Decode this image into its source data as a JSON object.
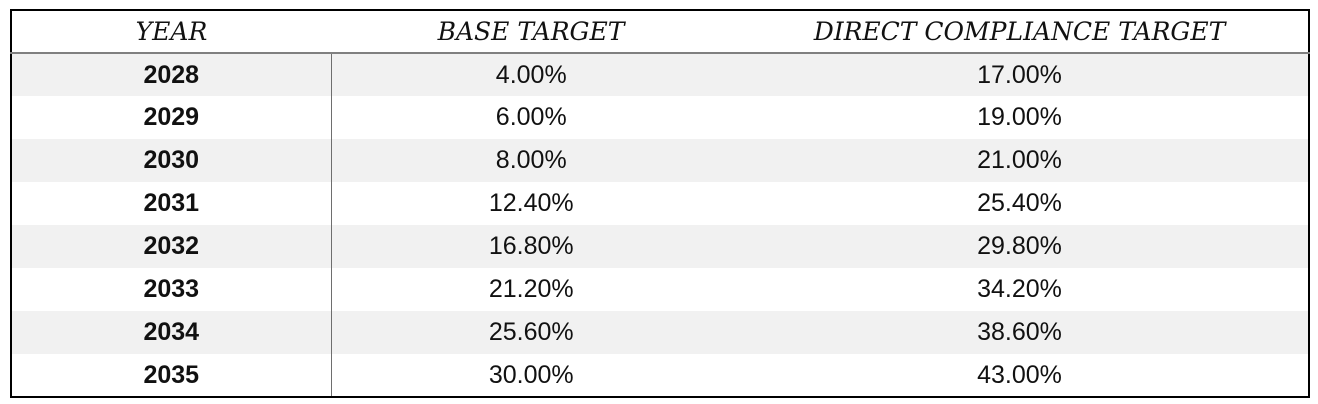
{
  "table": {
    "columns": [
      {
        "key": "year",
        "label": "YEAR"
      },
      {
        "key": "base_target",
        "label": "BASE TARGET"
      },
      {
        "key": "direct_compliance_target",
        "label": "DIRECT COMPLIANCE TARGET"
      }
    ],
    "rows": [
      {
        "year": "2028",
        "base_target": "4.00%",
        "direct_compliance_target": "17.00%"
      },
      {
        "year": "2029",
        "base_target": "6.00%",
        "direct_compliance_target": "19.00%"
      },
      {
        "year": "2030",
        "base_target": "8.00%",
        "direct_compliance_target": "21.00%"
      },
      {
        "year": "2031",
        "base_target": "12.40%",
        "direct_compliance_target": "25.40%"
      },
      {
        "year": "2032",
        "base_target": "16.80%",
        "direct_compliance_target": "29.80%"
      },
      {
        "year": "2033",
        "base_target": "21.20%",
        "direct_compliance_target": "34.20%"
      },
      {
        "year": "2034",
        "base_target": "25.60%",
        "direct_compliance_target": "38.60%"
      },
      {
        "year": "2035",
        "base_target": "30.00%",
        "direct_compliance_target": "43.00%"
      }
    ]
  },
  "chart_data": {
    "type": "table",
    "categories": [
      "2028",
      "2029",
      "2030",
      "2031",
      "2032",
      "2033",
      "2034",
      "2035"
    ],
    "series": [
      {
        "name": "BASE TARGET",
        "values": [
          4.0,
          6.0,
          8.0,
          12.4,
          16.8,
          21.2,
          25.6,
          30.0
        ]
      },
      {
        "name": "DIRECT COMPLIANCE TARGET",
        "values": [
          17.0,
          19.0,
          21.0,
          25.4,
          29.8,
          34.2,
          38.6,
          43.0
        ]
      }
    ],
    "value_unit": "%"
  },
  "colors": {
    "table_border": "#000000",
    "header_rule": "#808080",
    "column_divider": "#6e6e6e",
    "row_stripe": "#f1f1f1",
    "background": "#ffffff",
    "text": "#111111"
  }
}
